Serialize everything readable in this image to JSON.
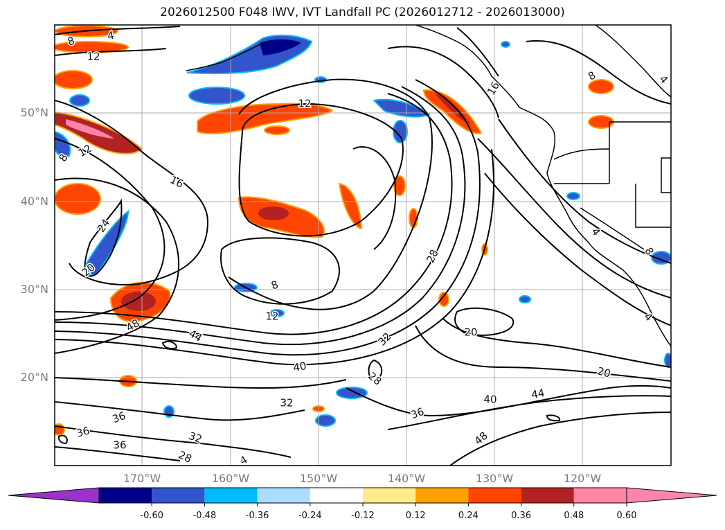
{
  "title": "2026012500 F048 IWV, IVT Landfall PC (2026012712 - 2026013000)",
  "map": {
    "lat_labels": [
      "50°N",
      "40°N",
      "30°N",
      "20°N"
    ],
    "lon_labels": [
      "170°W",
      "160°W",
      "150°W",
      "140°W",
      "130°W",
      "120°W"
    ],
    "grid": true,
    "coastline_color": "#000000",
    "contour_color": "#000000",
    "contour_labels": [
      "8",
      "4",
      "12",
      "12",
      "12",
      "8",
      "16",
      "24",
      "20",
      "48",
      "44",
      "8",
      "12",
      "40",
      "32",
      "28",
      "32",
      "36",
      "36",
      "36",
      "32",
      "28",
      "4",
      "28",
      "20",
      "40",
      "44",
      "20",
      "36",
      "48",
      "16",
      "8",
      "4",
      "4",
      "8",
      "4"
    ]
  },
  "colorbar": {
    "tick_labels": [
      "-0.60",
      "-0.48",
      "-0.36",
      "-0.24",
      "-0.12",
      "0.12",
      "0.24",
      "0.36",
      "0.48",
      "0.60"
    ],
    "colors": {
      "under": "#9933cc",
      "bins": [
        "#000088",
        "#3355cc",
        "#00bbff",
        "#aaddff",
        "#ffffff",
        "#ffeb8a",
        "#ffa200",
        "#ff4500",
        "#b22222",
        "#ff85a8"
      ],
      "over": "#ff85a8"
    }
  }
}
